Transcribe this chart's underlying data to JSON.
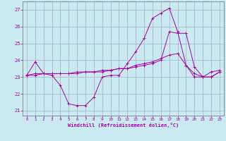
{
  "xlabel": "Windchill (Refroidissement éolien,°C)",
  "bg_color": "#c8eaf0",
  "grid_color": "#aaaacc",
  "line_color": "#aa00aa",
  "spine_color": "#888899",
  "xlim": [
    -0.5,
    23.5
  ],
  "ylim": [
    20.7,
    27.5
  ],
  "yticks": [
    21,
    22,
    23,
    24,
    25,
    26,
    27
  ],
  "xticks": [
    0,
    1,
    2,
    3,
    4,
    5,
    6,
    7,
    8,
    9,
    10,
    11,
    12,
    13,
    14,
    15,
    16,
    17,
    18,
    19,
    20,
    21,
    22,
    23
  ],
  "line1_x": [
    0,
    1,
    2,
    3,
    4,
    5,
    6,
    7,
    8,
    9,
    10,
    11,
    12,
    13,
    14,
    15,
    16,
    17,
    18,
    19,
    20,
    21,
    22,
    23
  ],
  "line1_y": [
    23.1,
    23.9,
    23.2,
    23.1,
    22.5,
    21.4,
    21.3,
    21.3,
    21.8,
    23.0,
    23.1,
    23.1,
    23.8,
    24.5,
    25.3,
    26.5,
    26.8,
    27.1,
    25.7,
    23.7,
    23.0,
    23.0,
    23.3,
    23.4
  ],
  "line2_x": [
    0,
    1,
    2,
    3,
    4,
    5,
    6,
    7,
    8,
    9,
    10,
    11,
    12,
    13,
    14,
    15,
    16,
    17,
    18,
    19,
    20,
    21,
    22,
    23
  ],
  "line2_y": [
    23.1,
    23.2,
    23.2,
    23.2,
    23.2,
    23.2,
    23.3,
    23.3,
    23.3,
    23.4,
    23.4,
    23.5,
    23.5,
    23.6,
    23.7,
    23.8,
    24.0,
    25.7,
    25.6,
    25.6,
    23.6,
    23.0,
    23.0,
    23.3
  ],
  "line3_x": [
    0,
    1,
    2,
    3,
    4,
    5,
    6,
    7,
    8,
    9,
    10,
    11,
    12,
    13,
    14,
    15,
    16,
    17,
    18,
    19,
    20,
    21,
    22,
    23
  ],
  "line3_y": [
    23.1,
    23.1,
    23.2,
    23.2,
    23.2,
    23.2,
    23.2,
    23.3,
    23.3,
    23.3,
    23.4,
    23.5,
    23.5,
    23.7,
    23.8,
    23.9,
    24.1,
    24.3,
    24.4,
    23.7,
    23.2,
    23.0,
    23.0,
    23.3
  ]
}
